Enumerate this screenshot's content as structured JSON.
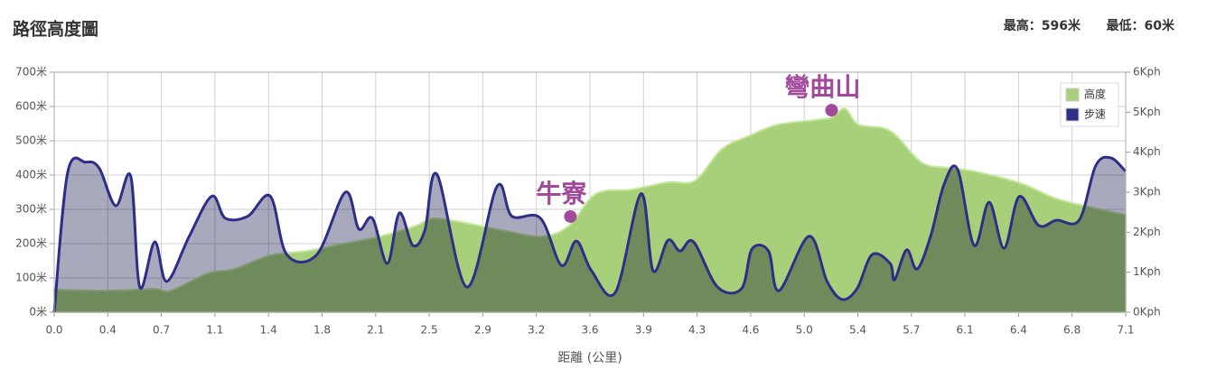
{
  "chart_data": {
    "type": "line",
    "title": "路徑高度圖",
    "subtitle": [
      "最高：596米",
      "最低：60米"
    ],
    "xlabel": "距離 (公里)",
    "xlim": [
      0,
      7.14
    ],
    "xticks": [
      {
        "value": 0,
        "label": "0.0"
      },
      {
        "value": 0.357,
        "label": "0.4"
      },
      {
        "value": 0.714,
        "label": "0.7"
      },
      {
        "value": 1.071,
        "label": "1.1"
      },
      {
        "value": 1.428,
        "label": "1.4"
      },
      {
        "value": 1.785,
        "label": "1.8"
      },
      {
        "value": 2.142,
        "label": "2.1"
      },
      {
        "value": 2.499,
        "label": "2.5"
      },
      {
        "value": 2.856,
        "label": "2.9"
      },
      {
        "value": 3.213,
        "label": "3.2"
      },
      {
        "value": 3.57,
        "label": "3.6"
      },
      {
        "value": 3.927,
        "label": "3.9"
      },
      {
        "value": 4.284,
        "label": "4.3"
      },
      {
        "value": 4.641,
        "label": "4.6"
      },
      {
        "value": 4.998,
        "label": "5.0"
      },
      {
        "value": 5.355,
        "label": "5.4"
      },
      {
        "value": 5.712,
        "label": "5.7"
      },
      {
        "value": 6.069,
        "label": "6.1"
      },
      {
        "value": 6.426,
        "label": "6.4"
      },
      {
        "value": 6.783,
        "label": "6.8"
      },
      {
        "value": 7.14,
        "label": "7.1"
      }
    ],
    "ylim": [
      0,
      700
    ],
    "yticks": [
      {
        "value": 0,
        "label": "0米"
      },
      {
        "value": 100,
        "label": "100米"
      },
      {
        "value": 200,
        "label": "200米"
      },
      {
        "value": 300,
        "label": "300米"
      },
      {
        "value": 400,
        "label": "400米"
      },
      {
        "value": 500,
        "label": "500米"
      },
      {
        "value": 600,
        "label": "600米"
      },
      {
        "value": 700,
        "label": "700米"
      }
    ],
    "y2lim": [
      0,
      6
    ],
    "y2ticks": [
      {
        "value": 0,
        "label": "0Kph"
      },
      {
        "value": 1,
        "label": "1Kph"
      },
      {
        "value": 2,
        "label": "2Kph"
      },
      {
        "value": 3,
        "label": "3Kph"
      },
      {
        "value": 4,
        "label": "4Kph"
      },
      {
        "value": 5,
        "label": "5Kph"
      },
      {
        "value": 6,
        "label": "6Kph"
      }
    ],
    "grid": true,
    "legend": "top-right",
    "series": [
      {
        "name": "高度",
        "color": "#a8d07a",
        "x": [
          0,
          0.36,
          0.66,
          0.78,
          1.02,
          1.2,
          1.44,
          1.69,
          1.93,
          2.17,
          2.41,
          2.53,
          2.77,
          3.01,
          3.25,
          3.43,
          3.61,
          3.85,
          4.09,
          4.27,
          4.45,
          4.64,
          4.82,
          5.06,
          5.18,
          5.27,
          5.36,
          5.57,
          5.78,
          5.96,
          6.14,
          6.44,
          6.68,
          6.92,
          7.14
        ],
        "values": [
          66,
          63,
          68,
          63,
          113,
          126,
          166,
          179,
          200,
          221,
          252,
          274,
          258,
          237,
          221,
          252,
          345,
          358,
          379,
          384,
          476,
          516,
          547,
          560,
          568,
          594,
          547,
          529,
          437,
          421,
          410,
          376,
          331,
          305,
          284
        ]
      },
      {
        "name": "步速",
        "color": "#2e2e88",
        "axis": "y2",
        "x": [
          0,
          0.09,
          0.21,
          0.3,
          0.41,
          0.51,
          0.57,
          0.67,
          0.75,
          0.9,
          1.05,
          1.14,
          1.29,
          1.44,
          1.55,
          1.75,
          1.94,
          2.03,
          2.12,
          2.22,
          2.3,
          2.39,
          2.47,
          2.55,
          2.75,
          2.95,
          3.05,
          3.24,
          3.38,
          3.48,
          3.58,
          3.74,
          3.91,
          3.99,
          4.09,
          4.17,
          4.26,
          4.42,
          4.58,
          4.65,
          4.76,
          4.83,
          5.03,
          5.15,
          5.25,
          5.35,
          5.45,
          5.57,
          5.6,
          5.68,
          5.75,
          5.84,
          5.93,
          6.02,
          6.13,
          6.23,
          6.33,
          6.43,
          6.56,
          6.68,
          6.83,
          6.94,
          7.04,
          7.14
        ],
        "values": [
          0,
          3.5,
          3.75,
          3.6,
          2.66,
          3.4,
          0.63,
          1.76,
          0.77,
          1.9,
          2.9,
          2.35,
          2.4,
          2.9,
          1.44,
          1.44,
          3.0,
          2.08,
          2.35,
          1.22,
          2.48,
          1.67,
          2.05,
          3.45,
          0.63,
          3.14,
          2.4,
          2.35,
          1.17,
          1.78,
          1.04,
          0.5,
          2.96,
          1.04,
          1.8,
          1.53,
          1.76,
          0.63,
          0.59,
          1.58,
          1.53,
          0.54,
          1.9,
          0.77,
          0.32,
          0.59,
          1.44,
          1.22,
          0.81,
          1.56,
          1.08,
          1.9,
          3.2,
          3.57,
          1.67,
          2.75,
          1.6,
          2.89,
          2.17,
          2.3,
          2.3,
          3.66,
          3.86,
          3.52
        ]
      }
    ],
    "annotations": [
      {
        "text": "牛寮",
        "x": 3.44,
        "y": 279
      },
      {
        "text": "彎曲山",
        "x": 5.18,
        "y": 589
      }
    ]
  }
}
